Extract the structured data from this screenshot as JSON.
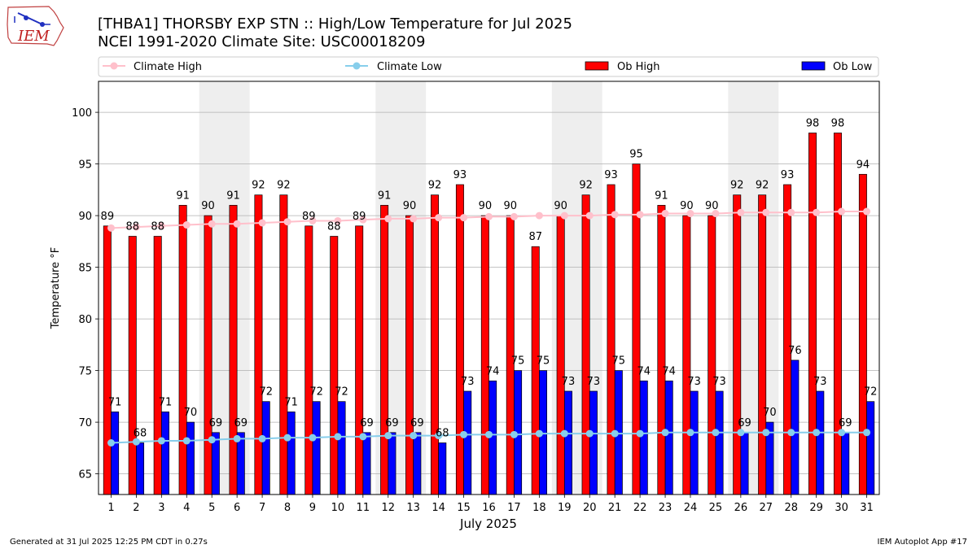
{
  "header": {
    "title_line1": "[THBA1] THORSBY EXP STN :: High/Low Temperature for Jul 2025",
    "title_line2": "NCEI 1991-2020 Climate Site: USC00018209",
    "logo_text": "IEM"
  },
  "footer": {
    "generated": "Generated at 31 Jul 2025 12:25 PM CDT in 0.27s",
    "app": "IEM Autoplot App #17"
  },
  "colors": {
    "ob_high": "#ff0000",
    "ob_low": "#0000ff",
    "climate_high": "#ffc0cb",
    "climate_low": "#87ceeb",
    "weekend_shade": "#eeeeee",
    "grid": "#b0b0b0"
  },
  "chart_data": {
    "type": "bar",
    "xlabel": "July 2025",
    "ylabel": "Temperature °F",
    "ylim": [
      63,
      103
    ],
    "yticks": [
      65,
      70,
      75,
      80,
      85,
      90,
      95,
      100
    ],
    "grid": true,
    "legend_position": "top",
    "categories": [
      "1",
      "2",
      "3",
      "4",
      "5",
      "6",
      "7",
      "8",
      "9",
      "10",
      "11",
      "12",
      "13",
      "14",
      "15",
      "16",
      "17",
      "18",
      "19",
      "20",
      "21",
      "22",
      "23",
      "24",
      "25",
      "26",
      "27",
      "28",
      "29",
      "30",
      "31"
    ],
    "shaded_days": [
      [
        5,
        6
      ],
      [
        12,
        13
      ],
      [
        19,
        20
      ],
      [
        26,
        27
      ]
    ],
    "series": [
      {
        "name": "Climate High",
        "kind": "line",
        "values": [
          88.8,
          88.9,
          89.0,
          89.1,
          89.2,
          89.2,
          89.3,
          89.4,
          89.5,
          89.5,
          89.6,
          89.7,
          89.7,
          89.8,
          89.8,
          89.9,
          89.9,
          90.0,
          90.0,
          90.0,
          90.1,
          90.1,
          90.2,
          90.2,
          90.2,
          90.3,
          90.3,
          90.3,
          90.3,
          90.4,
          90.4
        ]
      },
      {
        "name": "Climate Low",
        "kind": "line",
        "values": [
          68.0,
          68.1,
          68.2,
          68.2,
          68.3,
          68.4,
          68.4,
          68.5,
          68.5,
          68.6,
          68.6,
          68.7,
          68.7,
          68.7,
          68.8,
          68.8,
          68.8,
          68.9,
          68.9,
          68.9,
          68.9,
          68.9,
          69.0,
          69.0,
          69.0,
          69.0,
          69.0,
          69.0,
          69.0,
          69.0,
          69.0
        ]
      },
      {
        "name": "Ob High",
        "kind": "bar",
        "values": [
          89,
          88,
          88,
          91,
          90,
          91,
          92,
          92,
          89,
          88,
          89,
          91,
          90,
          92,
          93,
          90,
          90,
          87,
          90,
          92,
          93,
          95,
          91,
          90,
          90,
          92,
          92,
          93,
          98,
          98,
          94
        ]
      },
      {
        "name": "Ob Low",
        "kind": "bar",
        "values": [
          71,
          68,
          71,
          70,
          69,
          69,
          72,
          71,
          72,
          72,
          69,
          69,
          69,
          68,
          73,
          74,
          75,
          75,
          73,
          73,
          75,
          74,
          74,
          73,
          73,
          69,
          70,
          76,
          73,
          69,
          72
        ]
      }
    ]
  }
}
